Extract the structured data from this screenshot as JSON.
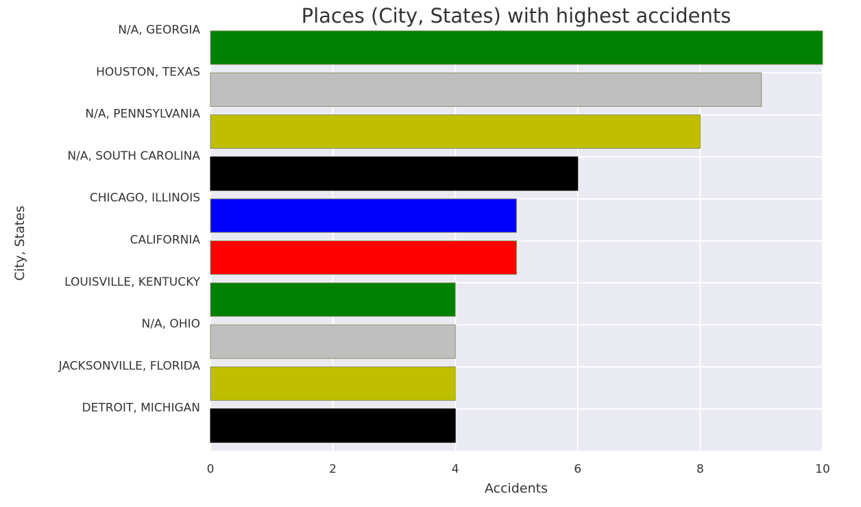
{
  "chart_data": {
    "type": "bar",
    "orientation": "horizontal",
    "title": "Places (City, States) with highest accidents",
    "xlabel": "Accidents",
    "ylabel": "City, States",
    "xlim": [
      0,
      10
    ],
    "xticks": [
      "0",
      "2",
      "4",
      "6",
      "8",
      "10"
    ],
    "grid": true,
    "categories": [
      "N/A, GEORGIA",
      "HOUSTON, TEXAS",
      "N/A, PENNSYLVANIA",
      "N/A, SOUTH CAROLINA",
      "CHICAGO, ILLINOIS",
      "CALIFORNIA",
      "LOUISVILLE, KENTUCKY",
      "N/A, OHIO",
      "JACKSONVILLE, FLORIDA",
      "DETROIT, MICHIGAN"
    ],
    "values": [
      10,
      9,
      8,
      6,
      5,
      5,
      4,
      4,
      4,
      4
    ],
    "colors": [
      "#008000",
      "#bfbfbf",
      "#bfbf00",
      "#000000",
      "#0000ff",
      "#ff0000",
      "#008000",
      "#bfbfbf",
      "#bfbf00",
      "#000000"
    ],
    "plot_background": "#eaeaf2"
  }
}
